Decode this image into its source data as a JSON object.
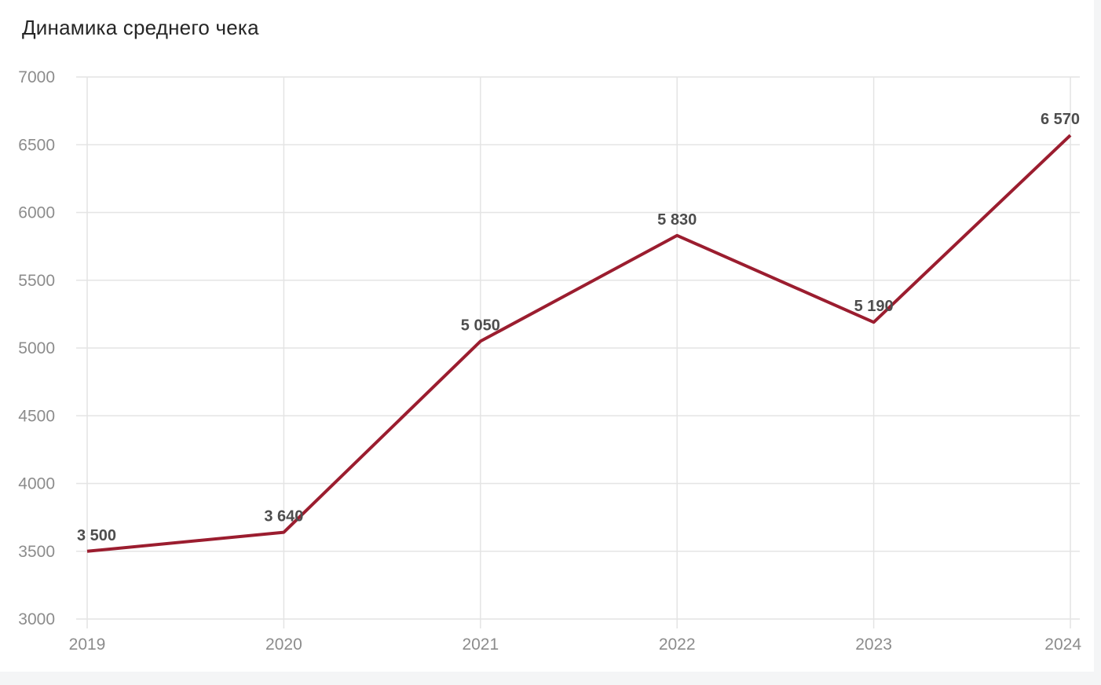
{
  "page": {
    "card_background": "#ffffff",
    "margin_background": "#f4f5f6"
  },
  "chart_data": {
    "type": "line",
    "title": "Динамика среднего чека",
    "categories": [
      "2019",
      "2020",
      "2021",
      "2022",
      "2023",
      "2024"
    ],
    "values": [
      3500,
      3640,
      5050,
      5830,
      5190,
      6570
    ],
    "value_labels": [
      "3 500",
      "3 640",
      "5 050",
      "5 830",
      "5 190",
      "6 570"
    ],
    "ylim": [
      3000,
      7000
    ],
    "yticks": [
      "3000",
      "3500",
      "4000",
      "4500",
      "5000",
      "5500",
      "6000",
      "6500",
      "7000"
    ],
    "xlabel": "",
    "ylabel": "",
    "grid": true,
    "legend": false,
    "colors": {
      "line": "#9b1d2f",
      "grid": "#e4e4e4",
      "axis_text": "#8c8c8c",
      "data_label": "#4d4d4d",
      "title": "#262626"
    }
  }
}
